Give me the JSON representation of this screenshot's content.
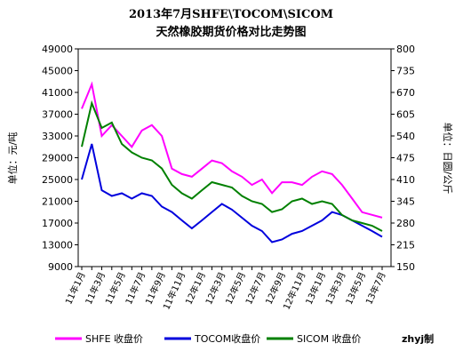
{
  "chart_data": {
    "type": "line",
    "title": "2013年7月SHFE\\TOCOM\\SICOM",
    "subtitle": "天然橡胶期货价格对比走势图",
    "ylabel": "单位：元/吨",
    "y2label": "单位：日圆/公斤",
    "annotation": "zhyj制",
    "categories": [
      "11年1月",
      null,
      "11年3月",
      null,
      "11年5月",
      null,
      "11年7月",
      null,
      "11年9月",
      null,
      "11年11月",
      null,
      "12年1月",
      null,
      "12年3月",
      null,
      "12年5月",
      null,
      "12年7月",
      null,
      "12年9月",
      null,
      "12年11月",
      null,
      "13年1月",
      null,
      "13年3月",
      null,
      "13年5月",
      null,
      "13年7月"
    ],
    "ylim": [
      9000,
      49000
    ],
    "yticks": [
      9000,
      13000,
      17000,
      21000,
      25000,
      29000,
      33000,
      37000,
      41000,
      45000,
      49000
    ],
    "y2lim": [
      150,
      800
    ],
    "y2ticks": [
      150,
      215,
      280,
      345,
      410,
      475,
      540,
      605,
      670,
      735,
      800
    ],
    "legend": "bottom",
    "series": [
      {
        "name": "SHFE 收盘价",
        "color": "#ff00ff",
        "values": [
          38000,
          42500,
          33000,
          35000,
          33000,
          31000,
          34000,
          35000,
          33000,
          27000,
          26000,
          25500,
          27000,
          28500,
          28000,
          26500,
          25500,
          24000,
          25000,
          22500,
          24500,
          24500,
          24000,
          25500,
          26500,
          26000,
          24000,
          21500,
          19000,
          18500,
          18000
        ]
      },
      {
        "name": "TOCOM收盘价",
        "color": "#0000dd",
        "axis": "y2",
        "values": [
          410,
          516,
          378,
          361,
          369,
          353,
          369,
          361,
          329,
          313,
          288,
          264,
          288,
          313,
          337,
          320,
          296,
          272,
          256,
          223,
          231,
          248,
          256,
          272,
          288,
          313,
          304,
          288,
          272,
          256,
          239
        ]
      },
      {
        "name": "SICOM 收盘价",
        "color": "#008000",
        "axis": "y2",
        "values": [
          508,
          638,
          564,
          580,
          516,
          491,
          475,
          467,
          443,
          394,
          369,
          353,
          378,
          402,
          394,
          386,
          361,
          345,
          337,
          313,
          321,
          345,
          353,
          337,
          345,
          337,
          304,
          288,
          280,
          272,
          256
        ]
      }
    ]
  }
}
